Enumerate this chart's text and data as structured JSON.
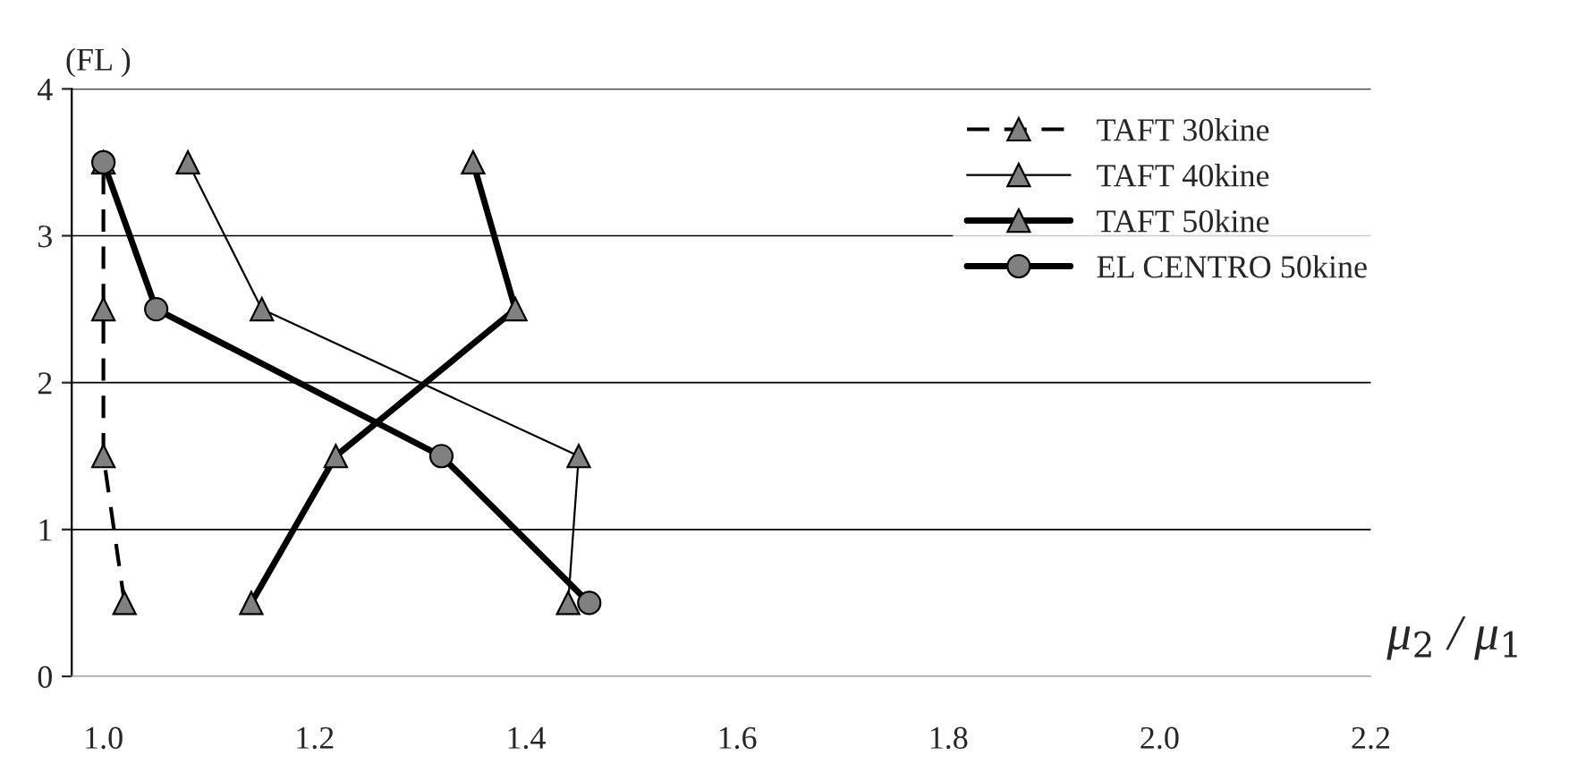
{
  "chart_data": {
    "type": "line",
    "ylabel": "(FL )",
    "xlabel": "μ$_{2}$ / μ$_{1}$",
    "xlim": [
      0.97,
      2.2
    ],
    "xticks": [
      {
        "value": 1.0,
        "label": "1.0"
      },
      1.2,
      1.4,
      1.6,
      1.8,
      {
        "value": 2.0,
        "label": "2.0"
      },
      2.2
    ],
    "ylim": [
      0,
      4
    ],
    "yticks": [
      0,
      1,
      2,
      3,
      4
    ],
    "grid": "y",
    "legend": "top right",
    "series": [
      {
        "name": "TAFT 30kine",
        "color": "#000000",
        "marker": "triangle",
        "line_style": "dashed",
        "x": [
          1.02,
          1.0,
          1.0,
          1.0
        ],
        "values": [
          0.5,
          1.5,
          2.5,
          3.5
        ]
      },
      {
        "name": "TAFT 40kine",
        "color": "#000000",
        "marker": "triangle",
        "line_style": "solid",
        "x": [
          1.44,
          1.45,
          1.15,
          1.08
        ],
        "values": [
          0.5,
          1.5,
          2.5,
          3.5
        ]
      },
      {
        "name": "TAFT 50kine",
        "color": "#000000",
        "marker": "triangle",
        "line_style": "solid",
        "x": [
          1.14,
          1.22,
          1.39,
          1.35
        ],
        "values": [
          0.5,
          1.5,
          2.5,
          3.5
        ]
      },
      {
        "name": "EL CENTRO 50kine",
        "color": "#000000",
        "marker": "circle",
        "line_style": "solid",
        "x": [
          1.46,
          1.32,
          1.05,
          1.0
        ],
        "values": [
          0.5,
          1.5,
          2.5,
          3.5
        ]
      }
    ]
  }
}
